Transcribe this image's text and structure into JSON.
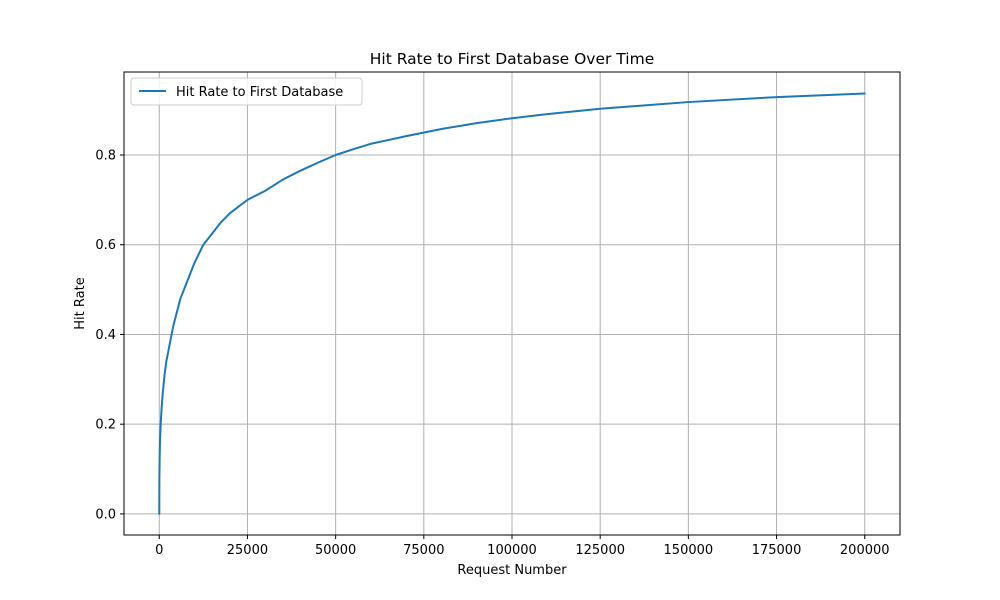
{
  "chart_data": {
    "type": "line",
    "title": "Hit Rate to First Database Over Time",
    "xlabel": "Request Number",
    "ylabel": "Hit Rate",
    "xlim": [
      -10000,
      210000
    ],
    "ylim": [
      -0.047,
      0.985
    ],
    "xticks": [
      0,
      25000,
      50000,
      75000,
      100000,
      125000,
      150000,
      175000,
      200000
    ],
    "xtick_labels": [
      "0",
      "25000",
      "50000",
      "75000",
      "100000",
      "125000",
      "150000",
      "175000",
      "200000"
    ],
    "yticks": [
      0.0,
      0.2,
      0.4,
      0.6,
      0.8
    ],
    "ytick_labels": [
      "0.0",
      "0.2",
      "0.4",
      "0.6",
      "0.8"
    ],
    "grid": true,
    "legend_position": "upper-left",
    "series": [
      {
        "name": "Hit Rate to First Database",
        "color": "#1f77b4",
        "x": [
          1,
          30,
          100,
          200,
          400,
          700,
          1000,
          1500,
          2000,
          3000,
          4000,
          5000,
          6000,
          8000,
          10000,
          12500,
          15000,
          17500,
          20000,
          22500,
          25000,
          30000,
          35000,
          40000,
          45000,
          50000,
          55000,
          60000,
          70000,
          80000,
          90000,
          100000,
          110000,
          125000,
          150000,
          175000,
          200000
        ],
        "y": [
          0.0,
          0.08,
          0.12,
          0.16,
          0.2,
          0.24,
          0.27,
          0.31,
          0.34,
          0.38,
          0.42,
          0.45,
          0.48,
          0.52,
          0.56,
          0.6,
          0.625,
          0.65,
          0.67,
          0.685,
          0.7,
          0.72,
          0.745,
          0.765,
          0.783,
          0.8,
          0.813,
          0.825,
          0.842,
          0.858,
          0.871,
          0.882,
          0.891,
          0.903,
          0.918,
          0.929,
          0.937
        ]
      }
    ]
  }
}
